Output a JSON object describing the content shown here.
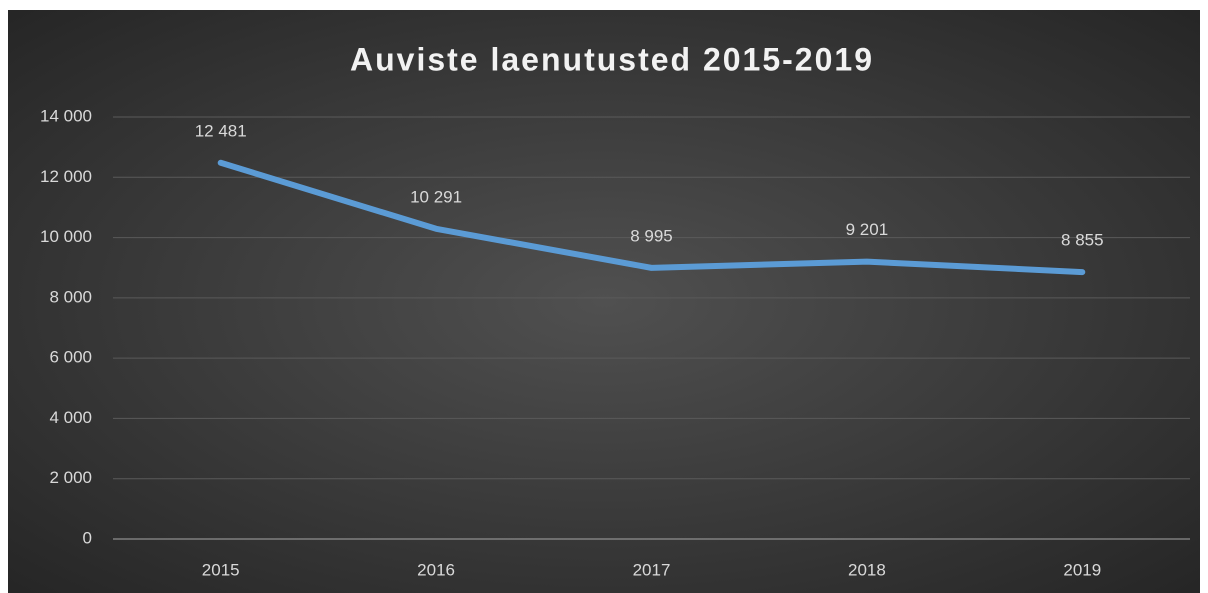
{
  "chart_data": {
    "type": "line",
    "title": "Auviste laenutusted 2015-2019",
    "categories": [
      "2015",
      "2016",
      "2017",
      "2018",
      "2019"
    ],
    "series": [
      {
        "name": "Auviste laenutusted",
        "color": "#5b9bd5",
        "values": [
          12481,
          10291,
          8995,
          9201,
          8855
        ],
        "value_labels": [
          "12 481",
          "10 291",
          "8 995",
          "9 201",
          "8 855"
        ]
      }
    ],
    "ylim": [
      0,
      14000
    ],
    "yticks": [
      {
        "value": 0,
        "label": "0"
      },
      {
        "value": 2000,
        "label": "2 000"
      },
      {
        "value": 4000,
        "label": "4 000"
      },
      {
        "value": 6000,
        "label": "6 000"
      },
      {
        "value": 8000,
        "label": "8 000"
      },
      {
        "value": 10000,
        "label": "10 000"
      },
      {
        "value": 12000,
        "label": "12 000"
      },
      {
        "value": 14000,
        "label": "14 000"
      }
    ],
    "grid": true
  }
}
